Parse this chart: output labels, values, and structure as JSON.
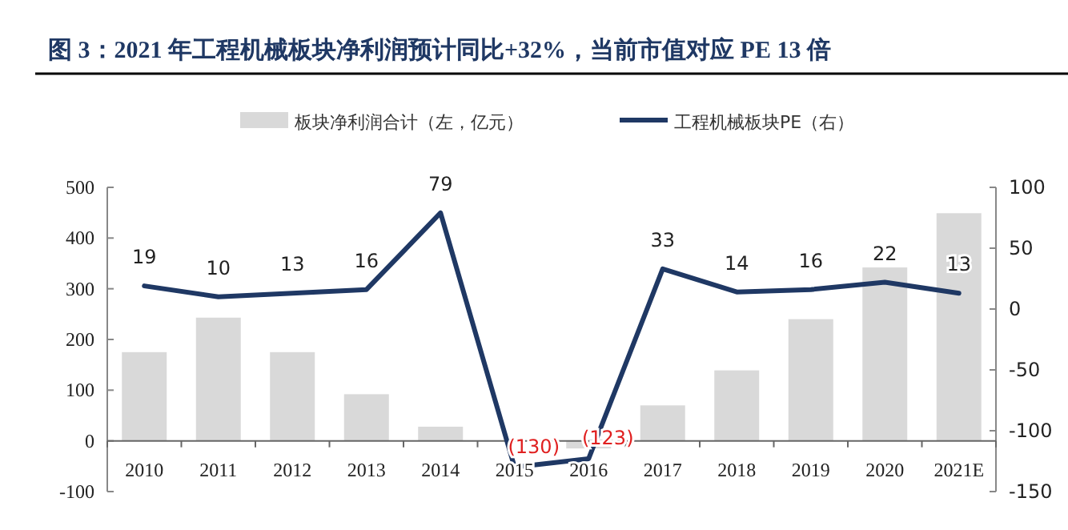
{
  "chart_data": {
    "type": "bar",
    "title": "图 3：2021 年工程机械板块净利润预计同比+32%，当前市值对应 PE 13 倍",
    "categories": [
      "2010",
      "2011",
      "2012",
      "2013",
      "2014",
      "2015",
      "2016",
      "2017",
      "2018",
      "2019",
      "2020",
      "2021E"
    ],
    "series": [
      {
        "name": "板块净利润合计（左，亿元）",
        "color": "#d9d9d9",
        "values": [
          175,
          243,
          175,
          92,
          28,
          null,
          -15,
          70,
          139,
          240,
          342,
          449
        ]
      },
      {
        "name": "工程机械板块PE（右）",
        "type": "line",
        "axis": "y2",
        "color": "#1f3864",
        "values": [
          19,
          10,
          13,
          16,
          79,
          -130,
          -123,
          33,
          14,
          16,
          22,
          13
        ],
        "value_labels": [
          "19",
          "10",
          "13",
          "16",
          "79",
          "(130)",
          "(123)",
          "33",
          "14",
          "16",
          "22",
          "13"
        ]
      }
    ],
    "ylim": [
      -100,
      500
    ],
    "yticks": [
      -100,
      0,
      100,
      200,
      300,
      400,
      500
    ],
    "y2lim": [
      -150,
      100
    ],
    "y2ticks": [
      -150,
      -100,
      -50,
      0,
      50,
      100
    ],
    "legend": "top",
    "marker": "none",
    "line_style": "solid"
  }
}
